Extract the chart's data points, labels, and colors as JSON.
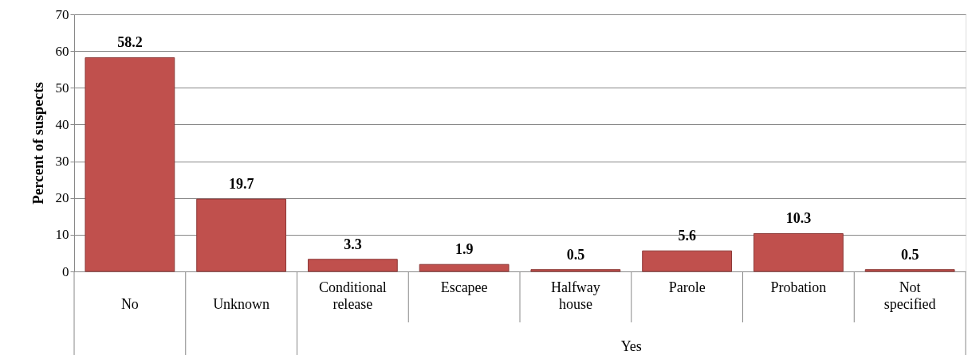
{
  "chart_data": {
    "type": "bar",
    "ylabel": "Percent of suspects",
    "categories": [
      "No",
      "Unknown",
      "Conditional release",
      "Escapee",
      "Halfway house",
      "Parole",
      "Probation",
      "Not specified"
    ],
    "values": [
      58.2,
      19.7,
      3.3,
      1.9,
      0.5,
      5.6,
      10.3,
      0.5
    ],
    "color": "#c0504d",
    "data_labels": true,
    "ylim": [
      0,
      70
    ],
    "yticks": [
      0,
      10,
      20,
      30,
      40,
      50,
      60,
      70
    ],
    "grid": "y",
    "annotations": [
      "Yes"
    ]
  }
}
